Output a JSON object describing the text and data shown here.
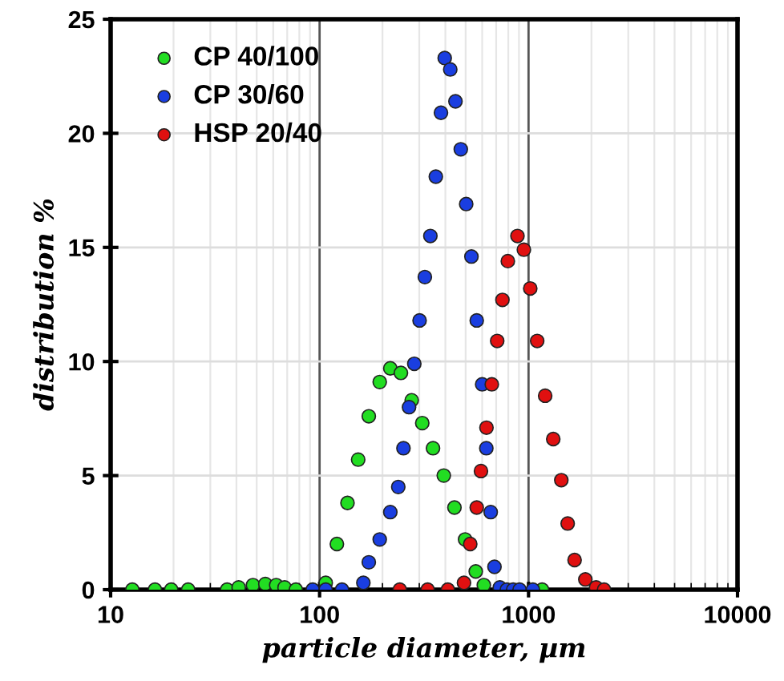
{
  "chart_data": {
    "type": "scatter",
    "xlabel": "particle diameter, µm",
    "ylabel": "distribution %",
    "log": "x",
    "xlim": [
      10,
      10000
    ],
    "xticks": [
      10,
      100,
      1000,
      10000
    ],
    "ylim": [
      0,
      25
    ],
    "yticks": [
      0,
      5,
      10,
      15,
      20,
      25
    ],
    "grid": true,
    "legend": "top left",
    "marker": "circle",
    "series": [
      {
        "name": "CP 40/100",
        "color": "#22dd22",
        "x": [
          12.7,
          16.3,
          19.5,
          23.5,
          36.1,
          41,
          48,
          55,
          62,
          68,
          77,
          107,
          121,
          136,
          153,
          172,
          194,
          218,
          245,
          276,
          310,
          349,
          393,
          442,
          497,
          559,
          611,
          1161
        ],
        "values": [
          0,
          0,
          0,
          0,
          0,
          0.1,
          0.2,
          0.25,
          0.2,
          0.1,
          0,
          0.3,
          2.0,
          3.8,
          5.7,
          7.6,
          9.1,
          9.7,
          9.5,
          8.3,
          7.3,
          6.2,
          5.0,
          3.6,
          2.2,
          0.8,
          0.2,
          0
        ]
      },
      {
        "name": "CP 30/60",
        "color": "#1a3ee0",
        "x": [
          92.7,
          107,
          128,
          162,
          172,
          194,
          218,
          238,
          252,
          268,
          284,
          301,
          319,
          339,
          360,
          381,
          397,
          422,
          447,
          474,
          503,
          533,
          565,
          600,
          628,
          659,
          687,
          729,
          787,
          844,
          906,
          1049
        ],
        "values": [
          0,
          0,
          0,
          0.3,
          1.2,
          2.2,
          3.4,
          4.5,
          6.2,
          8.0,
          9.9,
          11.8,
          13.7,
          15.5,
          18.1,
          20.9,
          23.3,
          22.8,
          21.4,
          19.3,
          16.9,
          14.6,
          11.8,
          9.0,
          6.2,
          3.4,
          1.0,
          0.1,
          0,
          0,
          0,
          0
        ]
      },
      {
        "name": "HSP 20/40",
        "color": "#e01010",
        "x": [
          242,
          329,
          411,
          491,
          526,
          565,
          592,
          629,
          667,
          708,
          750,
          796,
          885,
          950,
          1019,
          1100,
          1201,
          1313,
          1435,
          1539,
          1661,
          1870,
          2105,
          2298
        ],
        "values": [
          0,
          0,
          0,
          0.3,
          2.0,
          3.6,
          5.2,
          7.1,
          9.0,
          10.9,
          12.7,
          14.4,
          15.5,
          14.9,
          13.2,
          10.9,
          8.5,
          6.6,
          4.8,
          2.9,
          1.3,
          0.45,
          0.1,
          0
        ]
      }
    ]
  }
}
